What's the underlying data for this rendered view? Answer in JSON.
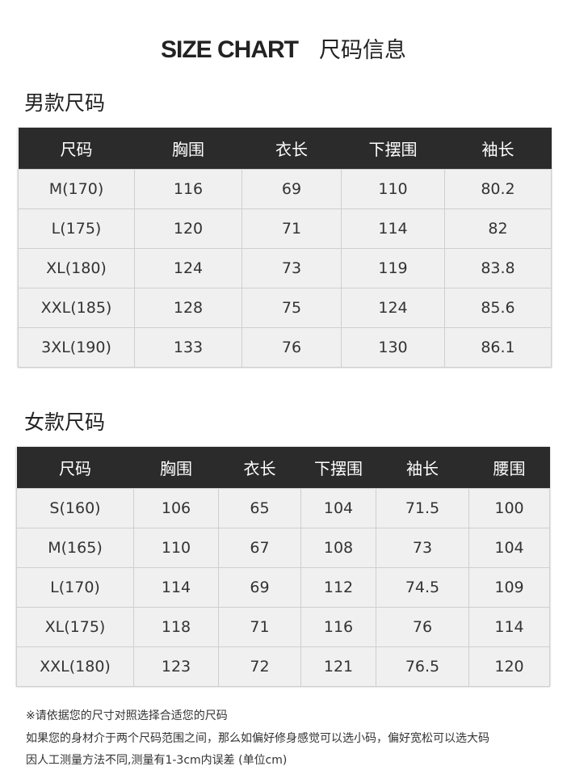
{
  "title_en": "SIZE CHART",
  "title_cn": "尺码信息",
  "men": {
    "heading": "男款尺码",
    "columns": [
      "尺码",
      "胸围",
      "衣长",
      "下摆围",
      "袖长"
    ],
    "rows": [
      [
        "M(170)",
        "116",
        "69",
        "110",
        "80.2"
      ],
      [
        "L(175)",
        "120",
        "71",
        "114",
        "82"
      ],
      [
        "XL(180)",
        "124",
        "73",
        "119",
        "83.8"
      ],
      [
        "XXL(185)",
        "128",
        "75",
        "124",
        "85.6"
      ],
      [
        "3XL(190)",
        "133",
        "76",
        "130",
        "86.1"
      ]
    ]
  },
  "women": {
    "heading": "女款尺码",
    "columns": [
      "尺码",
      "胸围",
      "衣长",
      "下摆围",
      "袖长",
      "腰围"
    ],
    "rows": [
      [
        "S(160)",
        "106",
        "65",
        "104",
        "71.5",
        "100"
      ],
      [
        "M(165)",
        "110",
        "67",
        "108",
        "73",
        "104"
      ],
      [
        "L(170)",
        "114",
        "69",
        "112",
        "74.5",
        "109"
      ],
      [
        "XL(175)",
        "118",
        "71",
        "116",
        "76",
        "114"
      ],
      [
        "XXL(180)",
        "123",
        "72",
        "121",
        "76.5",
        "120"
      ]
    ]
  },
  "notes": [
    "※请依据您的尺寸对照选择合适您的尺码",
    "如果您的身材介于两个尺码范围之间，那么如偏好修身感觉可以选小码，偏好宽松可以选大码",
    "因人工测量方法不同,测量有1-3cm内误差 (单位cm)"
  ]
}
